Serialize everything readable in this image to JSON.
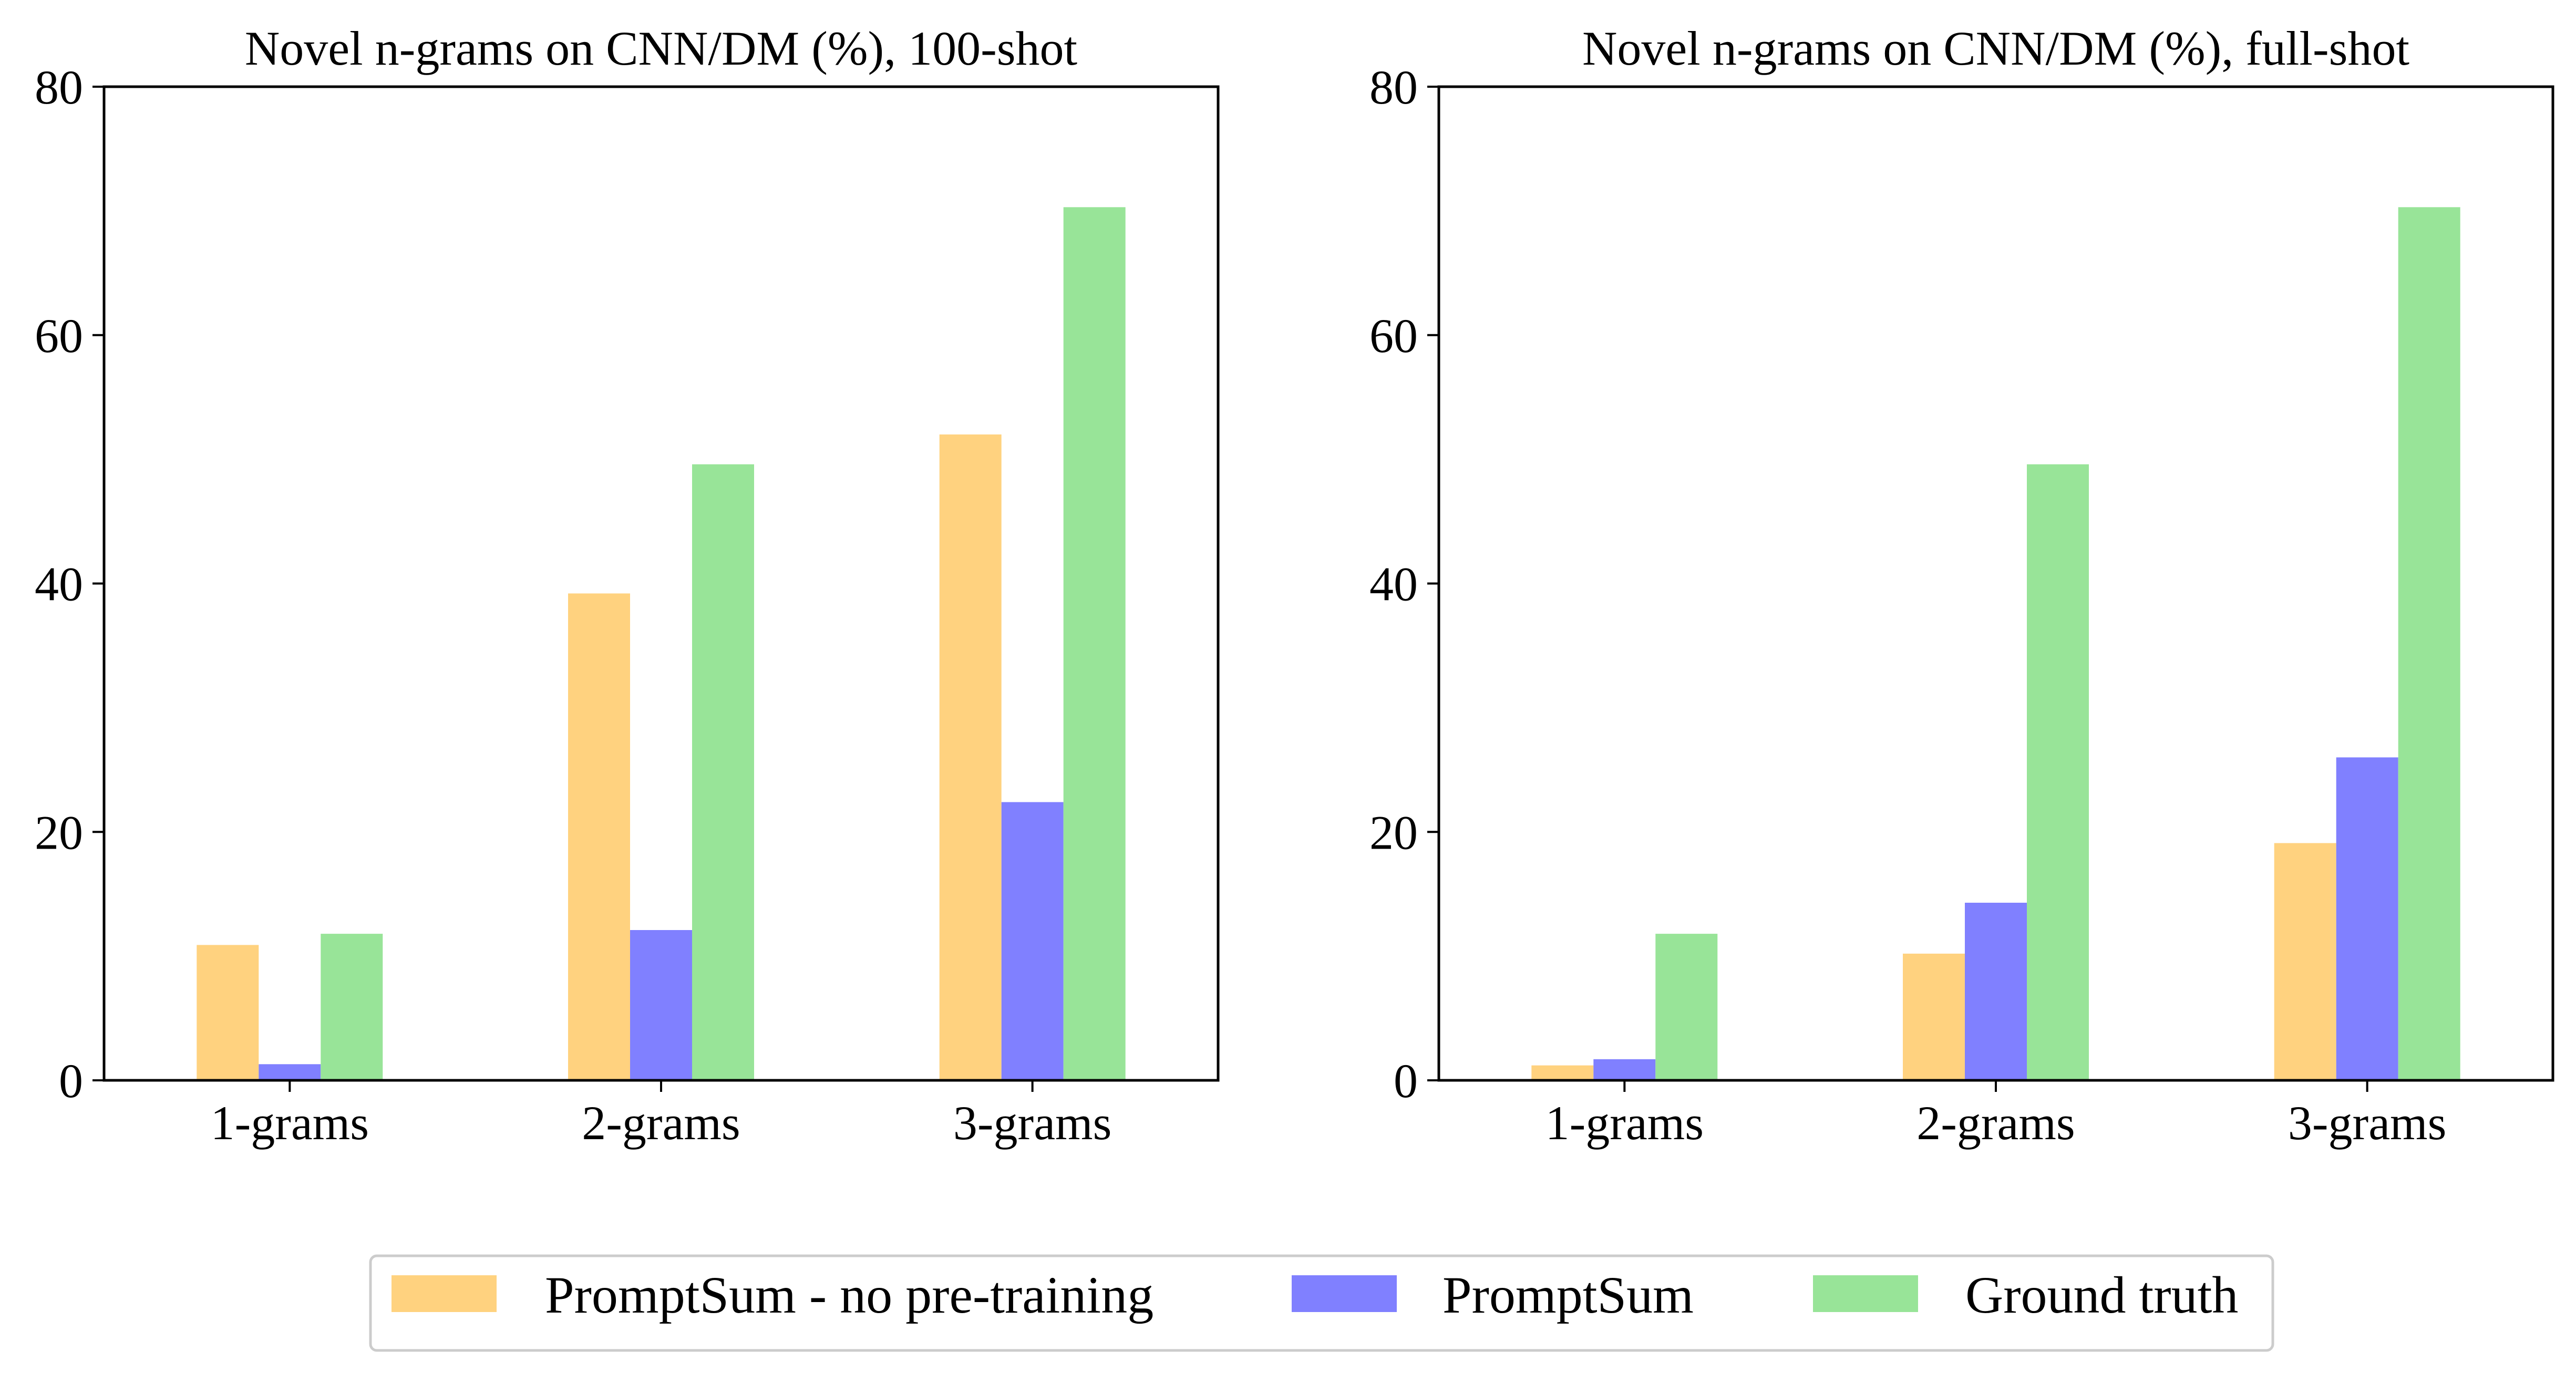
{
  "chart_data": [
    {
      "type": "bar",
      "title": "Novel n-grams on CNN/DM (%), 100-shot",
      "xlabel": "",
      "ylabel": "",
      "categories": [
        "1-grams",
        "2-grams",
        "3-grams"
      ],
      "ylim": [
        0,
        80
      ],
      "yticks": [
        0,
        20,
        40,
        60,
        80
      ],
      "grid": false,
      "series": [
        {
          "name": "PromptSum - no pre-training",
          "color": "#FFD27F",
          "values": [
            10.9,
            39.2,
            52.0
          ]
        },
        {
          "name": "PromptSum",
          "color": "#8080FF",
          "values": [
            1.3,
            12.1,
            22.4
          ]
        },
        {
          "name": "Ground truth",
          "color": "#98E498",
          "values": [
            11.8,
            49.6,
            70.3
          ]
        }
      ]
    },
    {
      "type": "bar",
      "title": "Novel n-grams on CNN/DM (%), full-shot",
      "xlabel": "",
      "ylabel": "",
      "categories": [
        "1-grams",
        "2-grams",
        "3-grams"
      ],
      "ylim": [
        0,
        80
      ],
      "yticks": [
        0,
        20,
        40,
        60,
        80
      ],
      "grid": false,
      "series": [
        {
          "name": "PromptSum - no pre-training",
          "color": "#FFD27F",
          "values": [
            1.2,
            10.2,
            19.1
          ]
        },
        {
          "name": "PromptSum",
          "color": "#8080FF",
          "values": [
            1.7,
            14.3,
            26.0
          ]
        },
        {
          "name": "Ground truth",
          "color": "#98E498",
          "values": [
            11.8,
            49.6,
            70.3
          ]
        }
      ]
    }
  ],
  "legend": {
    "placement": "bottom-center",
    "items": [
      {
        "label": "PromptSum - no pre-training",
        "color": "#FFD27F"
      },
      {
        "label": "PromptSum",
        "color": "#8080FF"
      },
      {
        "label": "Ground truth",
        "color": "#98E498"
      }
    ]
  }
}
